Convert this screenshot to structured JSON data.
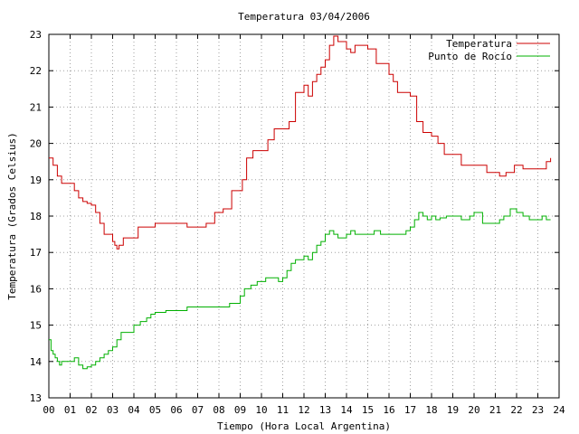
{
  "chart_data": {
    "type": "line",
    "title": "Temperatura 03/04/2006",
    "xlabel": "Tiempo (Hora Local Argentina)",
    "ylabel": "Temperatura (Grados Celsius)",
    "xlim": [
      0,
      24
    ],
    "ylim": [
      13,
      23
    ],
    "xticks": [
      "00",
      "01",
      "02",
      "03",
      "04",
      "05",
      "06",
      "07",
      "08",
      "09",
      "10",
      "11",
      "12",
      "13",
      "14",
      "15",
      "16",
      "17",
      "18",
      "19",
      "20",
      "21",
      "22",
      "23",
      "24"
    ],
    "yticks": [
      "13",
      "14",
      "15",
      "16",
      "17",
      "18",
      "19",
      "20",
      "21",
      "22",
      "23"
    ],
    "grid": true,
    "legend_position": "top-right",
    "colors": {
      "temperatura": "#cc0000",
      "rocio": "#00b000"
    },
    "series": [
      {
        "name": "Temperatura",
        "x": [
          0.0,
          0.2,
          0.4,
          0.6,
          1.0,
          1.2,
          1.4,
          1.6,
          1.8,
          2.0,
          2.2,
          2.4,
          2.6,
          2.8,
          3.0,
          3.1,
          3.2,
          3.3,
          3.5,
          3.8,
          4.2,
          4.6,
          5.0,
          5.5,
          6.0,
          6.5,
          7.0,
          7.4,
          7.8,
          8.2,
          8.6,
          8.9,
          9.1,
          9.3,
          9.6,
          10.0,
          10.3,
          10.6,
          11.0,
          11.3,
          11.6,
          12.0,
          12.2,
          12.4,
          12.6,
          12.8,
          13.0,
          13.2,
          13.4,
          13.6,
          13.8,
          14.0,
          14.2,
          14.4,
          14.6,
          15.0,
          15.4,
          15.8,
          16.0,
          16.2,
          16.4,
          16.7,
          17.0,
          17.3,
          17.6,
          18.0,
          18.3,
          18.6,
          19.0,
          19.4,
          19.8,
          20.2,
          20.6,
          21.0,
          21.2,
          21.5,
          21.9,
          22.3,
          22.7,
          23.1,
          23.4,
          23.6
        ],
        "y": [
          19.6,
          19.4,
          19.1,
          18.9,
          18.9,
          18.7,
          18.5,
          18.4,
          18.35,
          18.3,
          18.1,
          17.8,
          17.5,
          17.5,
          17.3,
          17.2,
          17.1,
          17.2,
          17.4,
          17.4,
          17.7,
          17.7,
          17.8,
          17.8,
          17.8,
          17.7,
          17.7,
          17.8,
          18.1,
          18.2,
          18.7,
          18.7,
          19.0,
          19.6,
          19.8,
          19.8,
          20.1,
          20.4,
          20.4,
          20.6,
          21.4,
          21.6,
          21.3,
          21.7,
          21.9,
          22.1,
          22.3,
          22.7,
          22.95,
          22.8,
          22.8,
          22.6,
          22.5,
          22.7,
          22.7,
          22.6,
          22.2,
          22.2,
          21.9,
          21.7,
          21.4,
          21.4,
          21.3,
          20.6,
          20.3,
          20.2,
          20.0,
          19.7,
          19.7,
          19.4,
          19.4,
          19.4,
          19.2,
          19.2,
          19.1,
          19.2,
          19.4,
          19.3,
          19.3,
          19.3,
          19.5,
          19.6
        ]
      },
      {
        "name": "Punto de Rocío",
        "x": [
          0.0,
          0.1,
          0.2,
          0.3,
          0.4,
          0.5,
          0.6,
          0.8,
          1.0,
          1.2,
          1.4,
          1.6,
          1.8,
          2.0,
          2.2,
          2.4,
          2.6,
          2.8,
          3.0,
          3.2,
          3.4,
          3.6,
          4.0,
          4.3,
          4.6,
          4.8,
          5.0,
          5.2,
          5.5,
          6.0,
          6.5,
          7.0,
          7.5,
          8.0,
          8.5,
          8.8,
          9.0,
          9.2,
          9.5,
          9.8,
          10.0,
          10.2,
          10.4,
          10.6,
          10.8,
          11.0,
          11.2,
          11.4,
          11.6,
          11.8,
          12.0,
          12.2,
          12.4,
          12.6,
          12.8,
          13.0,
          13.2,
          13.4,
          13.6,
          13.8,
          14.0,
          14.2,
          14.4,
          14.6,
          14.8,
          15.0,
          15.3,
          15.6,
          16.0,
          16.2,
          16.5,
          16.8,
          17.0,
          17.2,
          17.4,
          17.6,
          17.8,
          18.0,
          18.2,
          18.4,
          18.7,
          19.0,
          19.4,
          19.8,
          20.0,
          20.4,
          20.8,
          21.0,
          21.2,
          21.4,
          21.7,
          22.0,
          22.3,
          22.6,
          23.0,
          23.2,
          23.4,
          23.6
        ],
        "y": [
          14.6,
          14.3,
          14.2,
          14.1,
          14.0,
          13.9,
          14.0,
          14.0,
          14.0,
          14.1,
          13.9,
          13.8,
          13.85,
          13.9,
          14.0,
          14.1,
          14.2,
          14.3,
          14.4,
          14.6,
          14.8,
          14.8,
          15.0,
          15.1,
          15.2,
          15.3,
          15.35,
          15.35,
          15.4,
          15.4,
          15.5,
          15.5,
          15.5,
          15.5,
          15.6,
          15.6,
          15.8,
          16.0,
          16.1,
          16.2,
          16.2,
          16.3,
          16.3,
          16.3,
          16.2,
          16.3,
          16.5,
          16.7,
          16.8,
          16.8,
          16.9,
          16.8,
          17.0,
          17.2,
          17.3,
          17.5,
          17.6,
          17.5,
          17.4,
          17.4,
          17.5,
          17.6,
          17.5,
          17.5,
          17.5,
          17.5,
          17.6,
          17.5,
          17.5,
          17.5,
          17.5,
          17.6,
          17.7,
          17.9,
          18.1,
          18.0,
          17.9,
          18.0,
          17.9,
          17.95,
          18.0,
          18.0,
          17.9,
          18.0,
          18.1,
          17.8,
          17.8,
          17.8,
          17.9,
          18.0,
          18.2,
          18.1,
          18.0,
          17.9,
          17.9,
          18.0,
          17.9,
          17.9
        ]
      }
    ]
  }
}
